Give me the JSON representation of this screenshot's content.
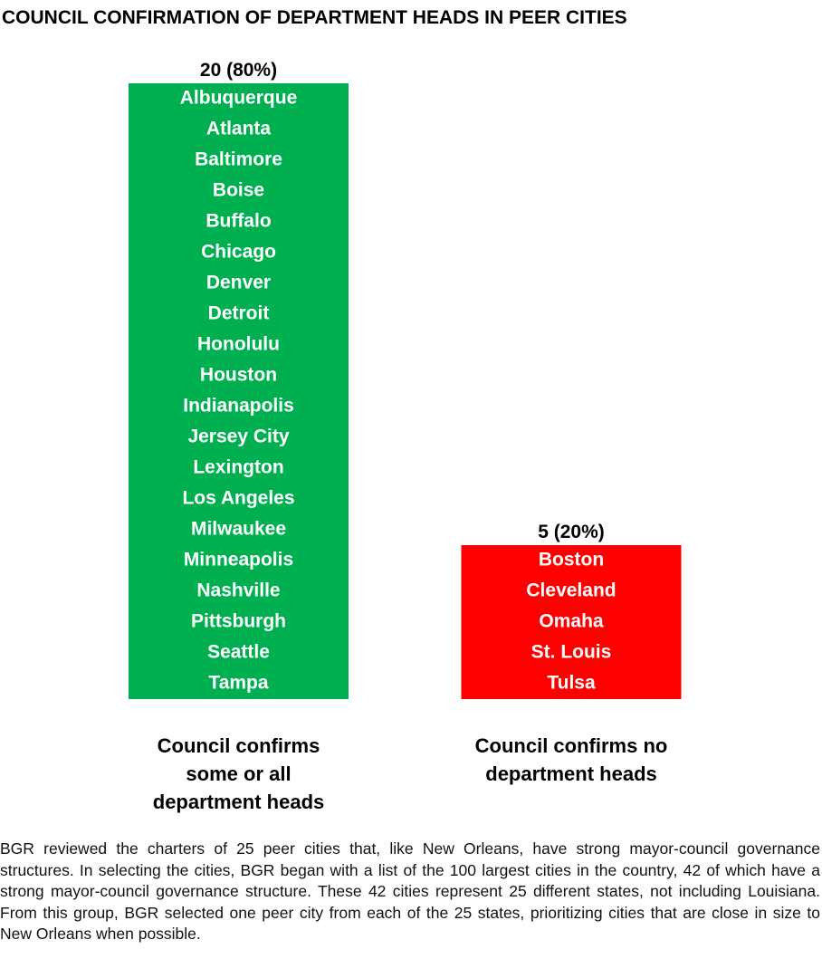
{
  "chart_data": {
    "type": "bar",
    "title": "COUNCIL CONFIRMATION OF DEPARTMENT HEADS IN PEER CITIES",
    "categories": [
      "Council confirms some or all department heads",
      "Council confirms no department heads"
    ],
    "values": [
      20,
      5
    ],
    "value_labels": [
      "20 (80%)",
      "5 (20%)"
    ],
    "colors": [
      "#00b050",
      "#ff0000"
    ],
    "members": [
      [
        "Albuquerque",
        "Atlanta",
        "Baltimore",
        "Boise",
        "Buffalo",
        "Chicago",
        "Denver",
        "Detroit",
        "Honolulu",
        "Houston",
        "Indianapolis",
        "Jersey City",
        "Lexington",
        "Los Angeles",
        "Milwaukee",
        "Minneapolis",
        "Nashville",
        "Pittsburgh",
        "Seattle",
        "Tampa"
      ],
      [
        "Boston",
        "Cleveland",
        "Omaha",
        "St. Louis",
        "Tulsa"
      ]
    ],
    "note": "BGR reviewed the charters of 25 peer cities that, like New Orleans, have strong mayor-council governance structures. In selecting the cities, BGR began with a list of the 100 largest cities in the country, 42 of which have a strong mayor-council governance structure. These 42 cities represent 25 different states, not including Louisiana. From this group, BGR selected one peer city from each of the 25 states, prioritizing cities that are close in size to New Orleans when possible."
  }
}
